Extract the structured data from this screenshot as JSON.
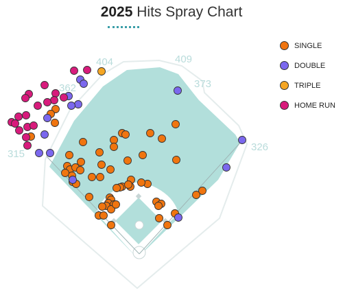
{
  "title": {
    "year": "2025",
    "rest": "Hits Spray Chart"
  },
  "fence_labels": [
    "404",
    "409",
    "362",
    "373",
    "315",
    "326"
  ],
  "legend": [
    {
      "label": "SINGLE",
      "color": "#f0750f"
    },
    {
      "label": "DOUBLE",
      "color": "#7b68ee"
    },
    {
      "label": "TRIPLE",
      "color": "#f5a623"
    },
    {
      "label": "HOME RUN",
      "color": "#d81b7c"
    }
  ],
  "colors": {
    "field": "#b2dfdb",
    "background": "#ffffff",
    "dirt": "#ffffff"
  },
  "chart_data": {
    "type": "scatter",
    "title": "2025 Hits Spray Chart",
    "series": [
      {
        "name": "SINGLE",
        "points": [
          [
            81,
            159
          ],
          [
            74,
            166
          ],
          [
            80,
            179
          ],
          [
            178,
            194
          ],
          [
            183,
            196
          ],
          [
            219,
            194
          ],
          [
            256,
            181
          ],
          [
            236,
            202
          ],
          [
            166,
            204
          ],
          [
            166,
            214
          ],
          [
            145,
            222
          ],
          [
            121,
            207
          ],
          [
            101,
            226
          ],
          [
            208,
            226
          ],
          [
            186,
            234
          ],
          [
            257,
            233
          ],
          [
            148,
            240
          ],
          [
            118,
            236
          ],
          [
            98,
            242
          ],
          [
            102,
            247
          ],
          [
            110,
            244
          ],
          [
            117,
            248
          ],
          [
            95,
            252
          ],
          [
            105,
            256
          ],
          [
            161,
            247
          ],
          [
            146,
            258
          ],
          [
            134,
            258
          ],
          [
            106,
            265
          ],
          [
            111,
            268
          ],
          [
            191,
            262
          ],
          [
            215,
            268
          ],
          [
            206,
            266
          ],
          [
            178,
            272
          ],
          [
            175,
            273
          ],
          [
            170,
            274
          ],
          [
            190,
            272
          ],
          [
            187,
            269
          ],
          [
            295,
            278
          ],
          [
            286,
            284
          ],
          [
            130,
            287
          ],
          [
            160,
            288
          ],
          [
            162,
            291
          ],
          [
            158,
            296
          ],
          [
            155,
            300
          ],
          [
            149,
            301
          ],
          [
            166,
            298
          ],
          [
            162,
            305
          ],
          [
            169,
            298
          ],
          [
            228,
            294
          ],
          [
            235,
            297
          ],
          [
            231,
            300
          ],
          [
            144,
            314
          ],
          [
            151,
            314
          ],
          [
            255,
            311
          ],
          [
            244,
            328
          ],
          [
            232,
            318
          ],
          [
            162,
            328
          ],
          [
            45,
            199
          ]
        ]
      },
      {
        "name": "DOUBLE",
        "points": [
          [
            117,
            116
          ],
          [
            122,
            122
          ],
          [
            100,
            140
          ],
          [
            114,
            152
          ],
          [
            104,
            154
          ],
          [
            69,
            172
          ],
          [
            65,
            196
          ],
          [
            57,
            223
          ],
          [
            73,
            223
          ],
          [
            259,
            132
          ],
          [
            353,
            204
          ],
          [
            330,
            244
          ],
          [
            106,
            262
          ],
          [
            260,
            317
          ]
        ]
      },
      {
        "name": "TRIPLE",
        "points": [
          [
            148,
            104
          ]
        ]
      },
      {
        "name": "HOME RUN",
        "points": [
          [
            108,
            103
          ],
          [
            127,
            102
          ],
          [
            65,
            124
          ],
          [
            42,
            137
          ],
          [
            37,
            143
          ],
          [
            81,
            136
          ],
          [
            93,
            142
          ],
          [
            79,
            146
          ],
          [
            69,
            149
          ],
          [
            55,
            154
          ],
          [
            27,
            170
          ],
          [
            38,
            168
          ],
          [
            17,
            178
          ],
          [
            22,
            180
          ],
          [
            40,
            185
          ],
          [
            49,
            183
          ],
          [
            28,
            190
          ],
          [
            38,
            200
          ],
          [
            40,
            212
          ]
        ]
      }
    ]
  }
}
